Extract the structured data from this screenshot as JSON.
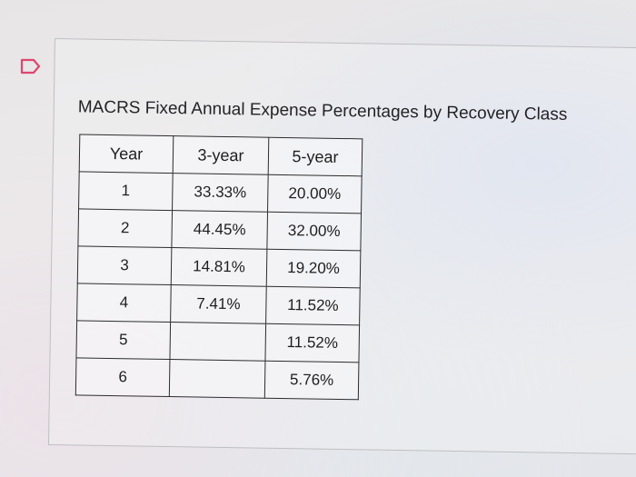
{
  "question": {
    "title": "MACRS Fixed Annual Expense Percentages by Recovery Class"
  },
  "table": {
    "headers": [
      "Year",
      "3-year",
      "5-year"
    ],
    "rows": [
      [
        "1",
        "33.33%",
        "20.00%"
      ],
      [
        "2",
        "44.45%",
        "32.00%"
      ],
      [
        "3",
        "14.81%",
        "19.20%"
      ],
      [
        "4",
        "7.41%",
        "11.52%"
      ],
      [
        "5",
        "",
        "11.52%"
      ],
      [
        "6",
        "",
        "5.76%"
      ]
    ]
  },
  "colors": {
    "flag_outline": "#e0456d",
    "border": "#2c2c2e"
  }
}
